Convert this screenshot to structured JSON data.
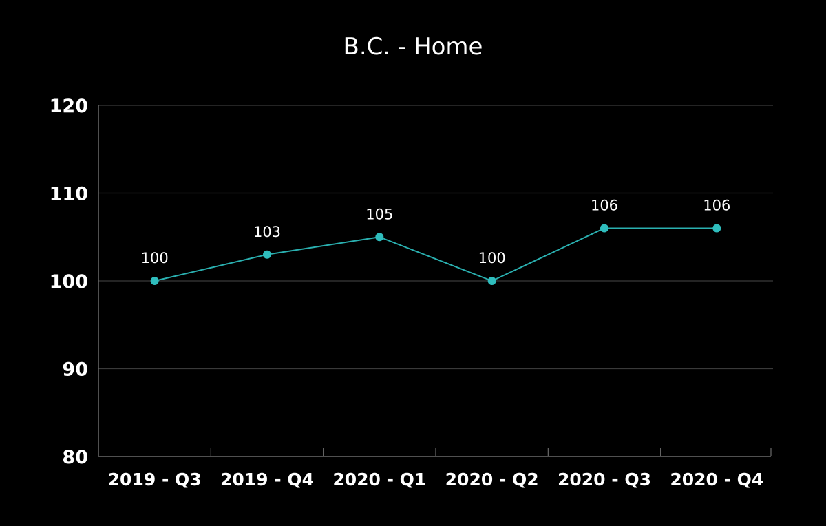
{
  "chart_data": {
    "type": "line",
    "title": "B.C. - Home",
    "xlabel": "",
    "ylabel": "",
    "categories": [
      "2019 - Q3",
      "2019 - Q4",
      "2020 - Q1",
      "2020 - Q2",
      "2020 - Q3",
      "2020 - Q4"
    ],
    "series": [
      {
        "values": [
          100,
          103,
          105,
          100,
          106,
          106
        ]
      }
    ],
    "ylim": [
      80,
      120
    ],
    "yticks": [
      80,
      90,
      100,
      110,
      120
    ],
    "data_labels": true,
    "grid": true,
    "legend": "none",
    "colors": {
      "background": "#000000",
      "line": "#2ab0b0",
      "marker": "#2fbdbd",
      "grid": "#3a3a3a",
      "axis": "#6a6a6a",
      "text": "#ffffff"
    }
  }
}
